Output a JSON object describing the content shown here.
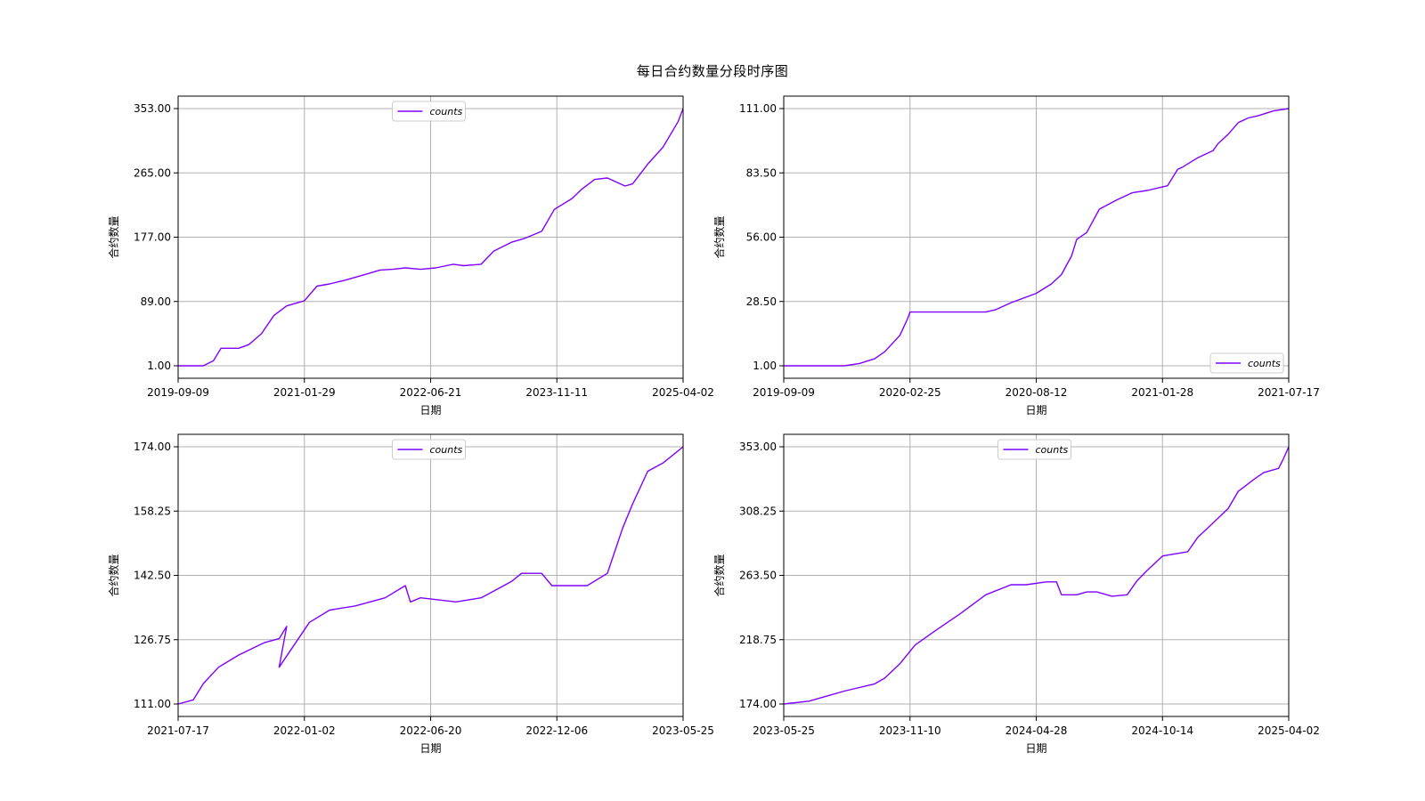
{
  "figure": {
    "title": "每日合约数量分段时序图"
  },
  "colors": {
    "line": "#7f00ff",
    "grid": "#b0b0b0",
    "frame": "#000000",
    "legend_border": "#cccccc"
  },
  "chart_data": [
    {
      "type": "line",
      "title": "",
      "xlabel": "日期",
      "ylabel": "合约数量",
      "legend": {
        "label": "counts",
        "position": "top-center"
      },
      "x_ticks": [
        "2019-09-09",
        "2021-01-29",
        "2022-06-21",
        "2023-11-11",
        "2025-04-02"
      ],
      "y_ticks": [
        "1.00",
        "89.00",
        "177.00",
        "265.00",
        "353.00"
      ],
      "ylim": [
        1,
        353
      ],
      "series": [
        {
          "name": "counts",
          "x_frac": [
            0,
            0.05,
            0.07,
            0.085,
            0.12,
            0.14,
            0.165,
            0.19,
            0.215,
            0.25,
            0.275,
            0.3,
            0.33,
            0.37,
            0.4,
            0.425,
            0.45,
            0.48,
            0.51,
            0.545,
            0.565,
            0.6,
            0.625,
            0.66,
            0.685,
            0.72,
            0.745,
            0.78,
            0.8,
            0.825,
            0.85,
            0.885,
            0.9,
            0.93,
            0.96,
            0.99,
            1.0
          ],
          "y": [
            1,
            1,
            8,
            25,
            25,
            30,
            45,
            70,
            83,
            90,
            110,
            113,
            118,
            126,
            132,
            133,
            135,
            133,
            135,
            140,
            138,
            140,
            158,
            170,
            175,
            185,
            215,
            230,
            243,
            256,
            258,
            247,
            250,
            277,
            300,
            335,
            353
          ]
        }
      ]
    },
    {
      "type": "line",
      "title": "",
      "xlabel": "日期",
      "ylabel": "合约数量",
      "legend": {
        "label": "counts",
        "position": "lower-right"
      },
      "x_ticks": [
        "2019-09-09",
        "2020-02-25",
        "2020-08-12",
        "2021-01-28",
        "2021-07-17"
      ],
      "y_ticks": [
        "1.00",
        "28.50",
        "56.00",
        "83.50",
        "111.00"
      ],
      "ylim": [
        1,
        111
      ],
      "series": [
        {
          "name": "counts",
          "x_frac": [
            0,
            0.12,
            0.15,
            0.18,
            0.2,
            0.23,
            0.245,
            0.25,
            0.29,
            0.33,
            0.38,
            0.4,
            0.42,
            0.45,
            0.5,
            0.53,
            0.55,
            0.57,
            0.58,
            0.6,
            0.625,
            0.66,
            0.69,
            0.72,
            0.74,
            0.76,
            0.78,
            0.79,
            0.82,
            0.85,
            0.86,
            0.88,
            0.9,
            0.92,
            0.94,
            0.97,
            1.0
          ],
          "y": [
            1,
            1,
            2,
            4,
            7,
            14,
            21,
            24,
            24,
            24,
            24,
            24,
            25,
            28,
            32,
            36,
            40,
            48,
            55,
            58,
            68,
            72,
            75,
            76,
            77,
            78,
            85,
            86,
            90,
            93,
            96,
            100,
            105,
            107,
            108,
            110,
            111
          ]
        }
      ]
    },
    {
      "type": "line",
      "title": "",
      "xlabel": "日期",
      "ylabel": "合约数量",
      "legend": {
        "label": "counts",
        "position": "top-center"
      },
      "x_ticks": [
        "2021-07-17",
        "2022-01-02",
        "2022-06-20",
        "2022-12-06",
        "2023-05-25"
      ],
      "y_ticks": [
        "111.00",
        "126.75",
        "142.50",
        "158.25",
        "174.00"
      ],
      "ylim": [
        111,
        174
      ],
      "series": [
        {
          "name": "counts",
          "x_frac": [
            0,
            0.03,
            0.05,
            0.08,
            0.12,
            0.17,
            0.2,
            0.215,
            0.2,
            0.26,
            0.3,
            0.35,
            0.38,
            0.41,
            0.45,
            0.46,
            0.48,
            0.55,
            0.6,
            0.63,
            0.66,
            0.68,
            0.72,
            0.74,
            0.81,
            0.85,
            0.88,
            0.9,
            0.93,
            0.96,
            1.0
          ],
          "y": [
            111,
            112,
            116,
            120,
            123,
            126,
            127,
            130,
            120,
            131,
            134,
            135,
            136,
            137,
            140,
            136,
            137,
            136,
            137,
            139,
            141,
            143,
            143,
            140,
            140,
            143,
            154,
            160,
            168,
            170,
            174
          ]
        }
      ]
    },
    {
      "type": "line",
      "title": "",
      "xlabel": "日期",
      "ylabel": "合约数量",
      "legend": {
        "label": "counts",
        "position": "top-center"
      },
      "x_ticks": [
        "2023-05-25",
        "2023-11-10",
        "2024-04-28",
        "2024-10-14",
        "2025-04-02"
      ],
      "y_ticks": [
        "174.00",
        "218.75",
        "263.50",
        "308.25",
        "353.00"
      ],
      "ylim": [
        174,
        353
      ],
      "series": [
        {
          "name": "counts",
          "x_frac": [
            0,
            0.05,
            0.08,
            0.12,
            0.18,
            0.2,
            0.23,
            0.26,
            0.3,
            0.35,
            0.4,
            0.45,
            0.48,
            0.52,
            0.54,
            0.55,
            0.58,
            0.6,
            0.62,
            0.65,
            0.68,
            0.7,
            0.72,
            0.75,
            0.8,
            0.82,
            0.85,
            0.88,
            0.9,
            0.93,
            0.95,
            0.98,
            0.99,
            1.0
          ],
          "y": [
            174,
            176,
            179,
            183,
            188,
            192,
            202,
            215,
            225,
            237,
            250,
            257,
            257,
            259,
            259,
            250,
            250,
            252,
            252,
            249,
            250,
            260,
            267,
            277,
            280,
            290,
            300,
            310,
            322,
            330,
            335,
            338,
            345,
            353
          ]
        }
      ]
    }
  ]
}
